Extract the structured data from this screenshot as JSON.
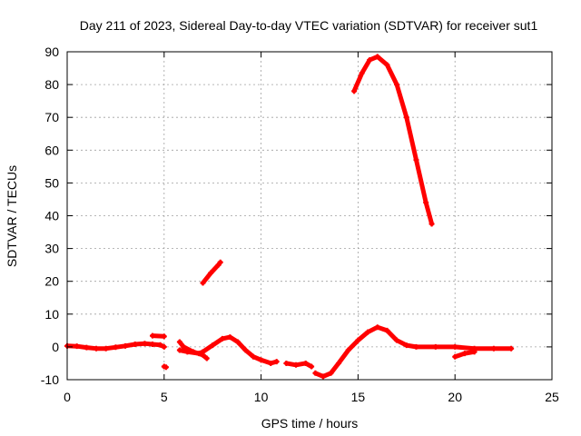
{
  "chart_data": {
    "type": "scatter",
    "title": "Day 211 of 2023, Sidereal Day-to-day VTEC variation (SDTVAR) for receiver sut1",
    "xlabel": "GPS time / hours",
    "ylabel": "SDTVAR / TECUs",
    "xlim": [
      0,
      25
    ],
    "ylim": [
      -10,
      90
    ],
    "xticks": [
      0,
      5,
      10,
      15,
      20,
      25
    ],
    "yticks": [
      -10,
      0,
      10,
      20,
      30,
      40,
      50,
      60,
      70,
      80,
      90
    ],
    "grid": true,
    "legend": "none",
    "series_color": "#ff0000",
    "series": [
      {
        "name": "seg1",
        "points": [
          [
            0.0,
            0.3
          ],
          [
            0.5,
            0.2
          ],
          [
            1.0,
            -0.2
          ],
          [
            1.5,
            -0.5
          ],
          [
            2.0,
            -0.5
          ],
          [
            2.5,
            -0.1
          ],
          [
            3.0,
            0.3
          ],
          [
            3.5,
            0.8
          ],
          [
            4.0,
            1.0
          ],
          [
            4.4,
            0.8
          ],
          [
            4.8,
            0.6
          ],
          [
            5.0,
            0.0
          ]
        ]
      },
      {
        "name": "seg2",
        "points": [
          [
            4.4,
            3.4
          ],
          [
            5.0,
            3.2
          ]
        ]
      },
      {
        "name": "seg3",
        "points": [
          [
            5.0,
            -6.0
          ],
          [
            5.1,
            -6.2
          ]
        ]
      },
      {
        "name": "seg4",
        "points": [
          [
            5.8,
            1.5
          ],
          [
            6.0,
            0.0
          ],
          [
            6.5,
            -1.5
          ],
          [
            7.0,
            -2.5
          ],
          [
            7.2,
            -3.5
          ]
        ]
      },
      {
        "name": "seg5",
        "points": [
          [
            5.8,
            -1.0
          ],
          [
            6.2,
            -1.5
          ],
          [
            6.8,
            -2.0
          ],
          [
            7.0,
            -1.5
          ],
          [
            7.5,
            0.5
          ],
          [
            8.0,
            2.5
          ],
          [
            8.4,
            3.0
          ],
          [
            8.8,
            1.5
          ],
          [
            9.2,
            -1.0
          ],
          [
            9.6,
            -3.0
          ],
          [
            10.0,
            -4.0
          ],
          [
            10.5,
            -5.0
          ],
          [
            10.8,
            -4.5
          ]
        ]
      },
      {
        "name": "seg6",
        "points": [
          [
            7.0,
            19.5
          ],
          [
            7.4,
            22.5
          ],
          [
            7.8,
            25.0
          ],
          [
            7.9,
            25.8
          ]
        ]
      },
      {
        "name": "seg7",
        "points": [
          [
            11.3,
            -5.0
          ],
          [
            11.8,
            -5.5
          ],
          [
            12.3,
            -5.0
          ],
          [
            12.6,
            -6.0
          ]
        ]
      },
      {
        "name": "seg8",
        "points": [
          [
            12.8,
            -8.0
          ],
          [
            13.2,
            -9.0
          ],
          [
            13.6,
            -8.0
          ],
          [
            14.0,
            -5.0
          ],
          [
            14.5,
            -1.0
          ],
          [
            15.0,
            2.0
          ],
          [
            15.5,
            4.5
          ],
          [
            16.0,
            6.0
          ],
          [
            16.5,
            5.0
          ],
          [
            17.0,
            2.0
          ],
          [
            17.5,
            0.5
          ],
          [
            18.0,
            0.0
          ],
          [
            19.0,
            0.0
          ],
          [
            20.0,
            0.0
          ],
          [
            21.0,
            -0.5
          ],
          [
            22.0,
            -0.5
          ],
          [
            22.9,
            -0.5
          ]
        ]
      },
      {
        "name": "seg9",
        "points": [
          [
            20.0,
            -3.0
          ],
          [
            20.5,
            -2.0
          ],
          [
            21.0,
            -1.5
          ]
        ]
      },
      {
        "name": "seg10",
        "points": [
          [
            14.8,
            78.0
          ],
          [
            15.2,
            83.5
          ],
          [
            15.6,
            87.5
          ],
          [
            16.0,
            88.5
          ],
          [
            16.5,
            86.0
          ],
          [
            17.0,
            80.0
          ],
          [
            17.5,
            70.0
          ],
          [
            18.0,
            57.0
          ],
          [
            18.5,
            44.0
          ],
          [
            18.8,
            37.5
          ]
        ]
      }
    ]
  }
}
